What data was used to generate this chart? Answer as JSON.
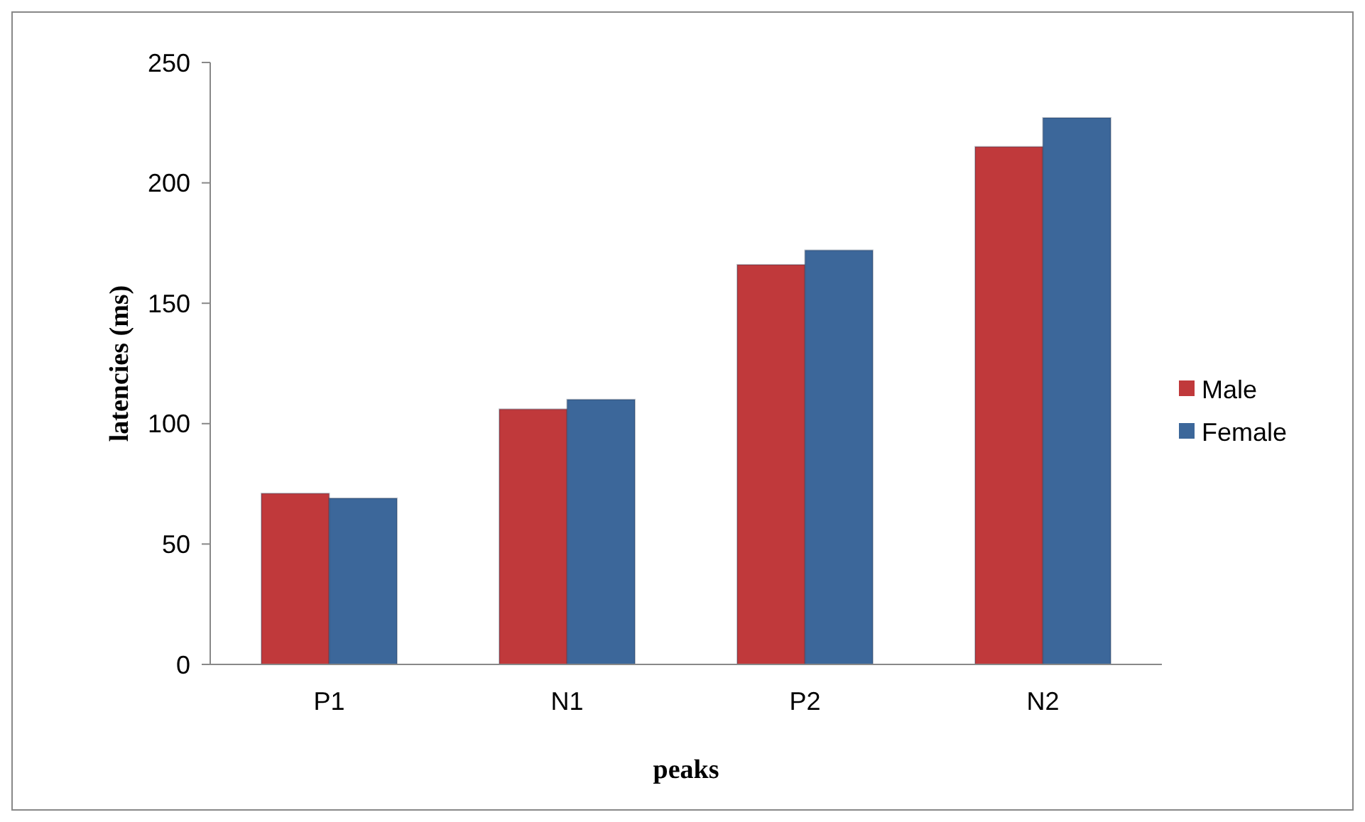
{
  "chart_data": {
    "type": "bar",
    "xlabel": "peaks",
    "ylabel": "latencies  (ms)",
    "categories": [
      "P1",
      "N1",
      "P2",
      "N2"
    ],
    "series": [
      {
        "name": "Male",
        "color": "#c0393b",
        "values": [
          71,
          106,
          166,
          215
        ]
      },
      {
        "name": "Female",
        "color": "#3c679a",
        "values": [
          69,
          110,
          172,
          227
        ]
      }
    ],
    "ylim": [
      0,
      250
    ],
    "yticks": [
      0,
      50,
      100,
      150,
      200,
      250
    ],
    "grid": false,
    "legend": "right"
  }
}
